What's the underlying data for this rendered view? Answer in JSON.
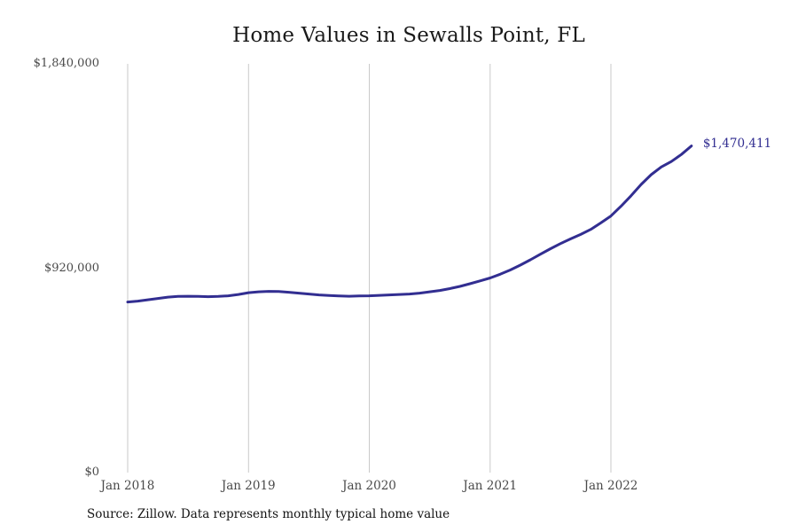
{
  "page": {
    "title": "Home Values in Sewalls Point, FL",
    "source_note": "Source: Zillow. Data represents monthly typical home value"
  },
  "chart_data": {
    "type": "line",
    "title": "Home Values in Sewalls Point, FL",
    "xlabel": "",
    "ylabel": "",
    "ylim": [
      0,
      1840000
    ],
    "grid": "vertical-only",
    "legend": "none",
    "end_label": "$1,470,411",
    "latest_value": 1470411,
    "x": [
      "Jan 2018",
      "Feb 2018",
      "Mar 2018",
      "Apr 2018",
      "May 2018",
      "Jun 2018",
      "Jul 2018",
      "Aug 2018",
      "Sep 2018",
      "Oct 2018",
      "Nov 2018",
      "Dec 2018",
      "Jan 2019",
      "Feb 2019",
      "Mar 2019",
      "Apr 2019",
      "May 2019",
      "Jun 2019",
      "Jul 2019",
      "Aug 2019",
      "Sep 2019",
      "Oct 2019",
      "Nov 2019",
      "Dec 2019",
      "Jan 2020",
      "Feb 2020",
      "Mar 2020",
      "Apr 2020",
      "May 2020",
      "Jun 2020",
      "Jul 2020",
      "Aug 2020",
      "Sep 2020",
      "Oct 2020",
      "Nov 2020",
      "Dec 2020",
      "Jan 2021",
      "Feb 2021",
      "Mar 2021",
      "Apr 2021",
      "May 2021",
      "Jun 2021",
      "Jul 2021",
      "Aug 2021",
      "Sep 2021",
      "Oct 2021",
      "Nov 2021",
      "Dec 2021",
      "Jan 2022",
      "Feb 2022",
      "Mar 2022",
      "Apr 2022",
      "May 2022",
      "Jun 2022",
      "Jul 2022",
      "Aug 2022",
      "Sep 2022"
    ],
    "series": [
      {
        "name": "Monthly typical home value",
        "values": [
          768000,
          772000,
          778000,
          784000,
          790000,
          793000,
          794000,
          793000,
          792000,
          793000,
          796000,
          802000,
          810000,
          814000,
          816000,
          815000,
          812000,
          808000,
          804000,
          800000,
          797000,
          795000,
          794000,
          795000,
          796000,
          798000,
          800000,
          802000,
          804000,
          808000,
          814000,
          820000,
          828000,
          838000,
          850000,
          863000,
          876000,
          893000,
          912000,
          934000,
          958000,
          983000,
          1008000,
          1031000,
          1052000,
          1072000,
          1095000,
          1124000,
          1155000,
          1199000,
          1246000,
          1297000,
          1341000,
          1376000,
          1400000,
          1432000,
          1470411
        ]
      }
    ],
    "y_ticks": [
      {
        "value": 0,
        "label": "$0"
      },
      {
        "value": 920000,
        "label": "$920,000"
      },
      {
        "value": 1840000,
        "label": "$1,840,000"
      }
    ],
    "x_ticks": [
      {
        "month_index": 0,
        "label": "Jan 2018"
      },
      {
        "month_index": 12,
        "label": "Jan 2019"
      },
      {
        "month_index": 24,
        "label": "Jan 2020"
      },
      {
        "month_index": 36,
        "label": "Jan 2021"
      },
      {
        "month_index": 48,
        "label": "Jan 2022"
      }
    ],
    "colors": {
      "line": "#322e91",
      "end_label": "#322e91",
      "gridline": "#c9c9c9",
      "tick_text": "#4a4a4a",
      "title_text": "#1a1a1a",
      "source_text": "#141414",
      "background": "#ffffff"
    }
  }
}
